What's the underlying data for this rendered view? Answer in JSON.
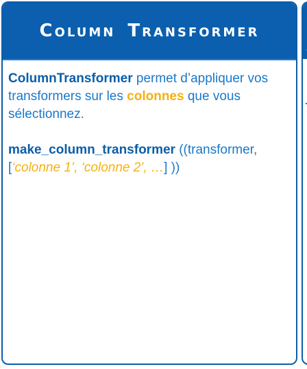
{
  "card": {
    "title": "Column Transformer",
    "intro": {
      "term": "ColumnTransformer",
      "text_1": " permet d’appliquer vos transformers sur les ",
      "highlight": "colonnes",
      "text_2": " que vous sélectionnez."
    },
    "code": {
      "function": "make_column_transformer",
      "open": " ((transformer, [",
      "col1": "‘colonne 1’",
      "sep1": ", ",
      "col2": "‘colonne 2’",
      "sep2": ", ",
      "ellipsis": "…",
      "close": "] ))"
    }
  },
  "colors": {
    "header_bg": "#0b5fae",
    "border": "#0b5da8",
    "body_text": "#1a78c8",
    "keyword": "#0b5ea8",
    "highlight": "#f2b212"
  }
}
